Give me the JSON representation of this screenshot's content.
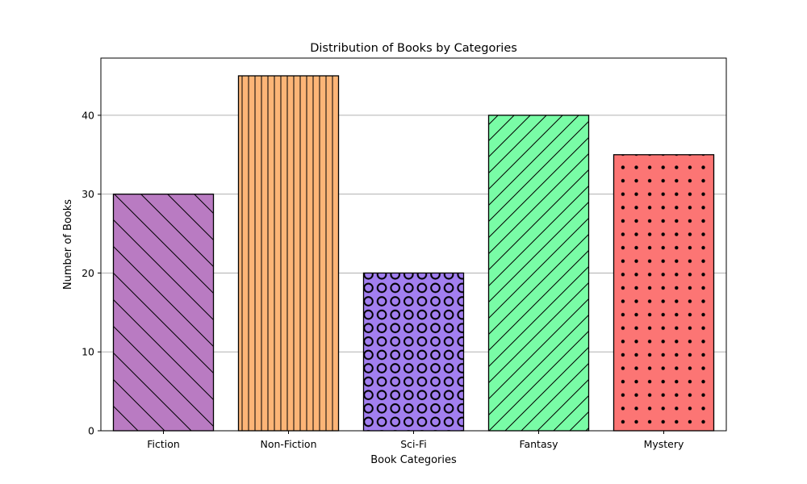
{
  "chart_data": {
    "type": "bar",
    "title": "Distribution of Books by Categories",
    "xlabel": "Book Categories",
    "ylabel": "Number of Books",
    "categories": [
      "Fiction",
      "Non-Fiction",
      "Sci-Fi",
      "Fantasy",
      "Mystery"
    ],
    "values": [
      30,
      45,
      20,
      40,
      35
    ],
    "colors": [
      "#b97bc2",
      "#fdb577",
      "#a27ff0",
      "#79fca6",
      "#fc7574"
    ],
    "hatches": [
      "backslash",
      "vertical",
      "circles",
      "slash",
      "dots"
    ],
    "ylim": [
      0,
      47.25
    ],
    "yticks": [
      0,
      10,
      20,
      30,
      40
    ],
    "grid": "y"
  }
}
